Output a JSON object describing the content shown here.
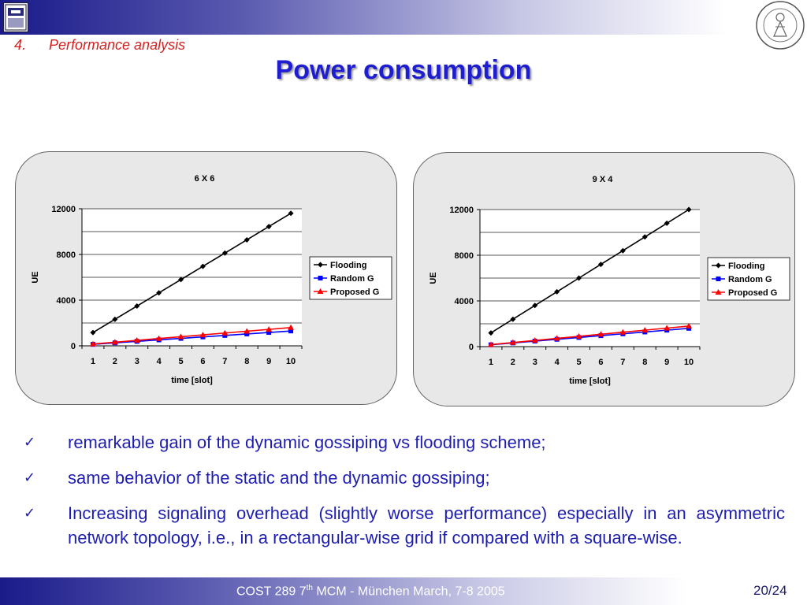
{
  "header": {
    "section_number": "4.",
    "section_title": "Performance analysis",
    "slide_title": "Power consumption"
  },
  "bullets": [
    "remarkable gain of the dynamic gossiping vs flooding scheme;",
    "same behavior of the static and the dynamic gossiping;",
    "Increasing signaling overhead (slightly worse performance) especially in an asymmetric network topology, i.e., in a rectangular-wise grid if compared with a square-wise."
  ],
  "footer": {
    "text_pre": "COST 289 7",
    "text_sup": "th",
    "text_post": " MCM - München March, 7-8 2005",
    "page": "20/24"
  },
  "colors": {
    "title": "#1e1ed0",
    "section": "#d42020",
    "flooding": "#000000",
    "random": "#0000ff",
    "proposed": "#ff0000"
  },
  "chart_data": [
    {
      "type": "line",
      "title": "6 X 6",
      "xlabel": "time [slot]",
      "ylabel": "UE",
      "x": [
        1,
        2,
        3,
        4,
        5,
        6,
        7,
        8,
        9,
        10
      ],
      "ylim": [
        0,
        12000
      ],
      "yticks": [
        0,
        4000,
        8000,
        12000
      ],
      "grid": true,
      "legend_position": "right",
      "series": [
        {
          "name": "Flooding",
          "marker": "diamond",
          "color": "#000000",
          "values": [
            1160,
            2320,
            3480,
            4640,
            5800,
            6960,
            8120,
            9280,
            10440,
            11600
          ]
        },
        {
          "name": "Random G",
          "marker": "square",
          "color": "#0000ff",
          "values": [
            130,
            260,
            390,
            520,
            650,
            780,
            910,
            1040,
            1170,
            1300
          ]
        },
        {
          "name": "Proposed G",
          "marker": "triangle",
          "color": "#ff0000",
          "values": [
            160,
            320,
            480,
            640,
            800,
            960,
            1120,
            1280,
            1440,
            1600
          ]
        }
      ]
    },
    {
      "type": "line",
      "title": "9 X 4",
      "xlabel": "time [slot]",
      "ylabel": "UE",
      "x": [
        1,
        2,
        3,
        4,
        5,
        6,
        7,
        8,
        9,
        10
      ],
      "ylim": [
        0,
        12000
      ],
      "yticks": [
        0,
        4000,
        8000,
        12000
      ],
      "grid": true,
      "legend_position": "right",
      "series": [
        {
          "name": "Flooding",
          "marker": "diamond",
          "color": "#000000",
          "values": [
            1200,
            2400,
            3600,
            4800,
            6000,
            7200,
            8400,
            9600,
            10800,
            12000
          ]
        },
        {
          "name": "Random G",
          "marker": "square",
          "color": "#0000ff",
          "values": [
            160,
            320,
            480,
            640,
            800,
            960,
            1120,
            1280,
            1440,
            1600
          ]
        },
        {
          "name": "Proposed G",
          "marker": "triangle",
          "color": "#ff0000",
          "values": [
            180,
            360,
            540,
            720,
            900,
            1080,
            1260,
            1440,
            1620,
            1800
          ]
        }
      ]
    }
  ]
}
